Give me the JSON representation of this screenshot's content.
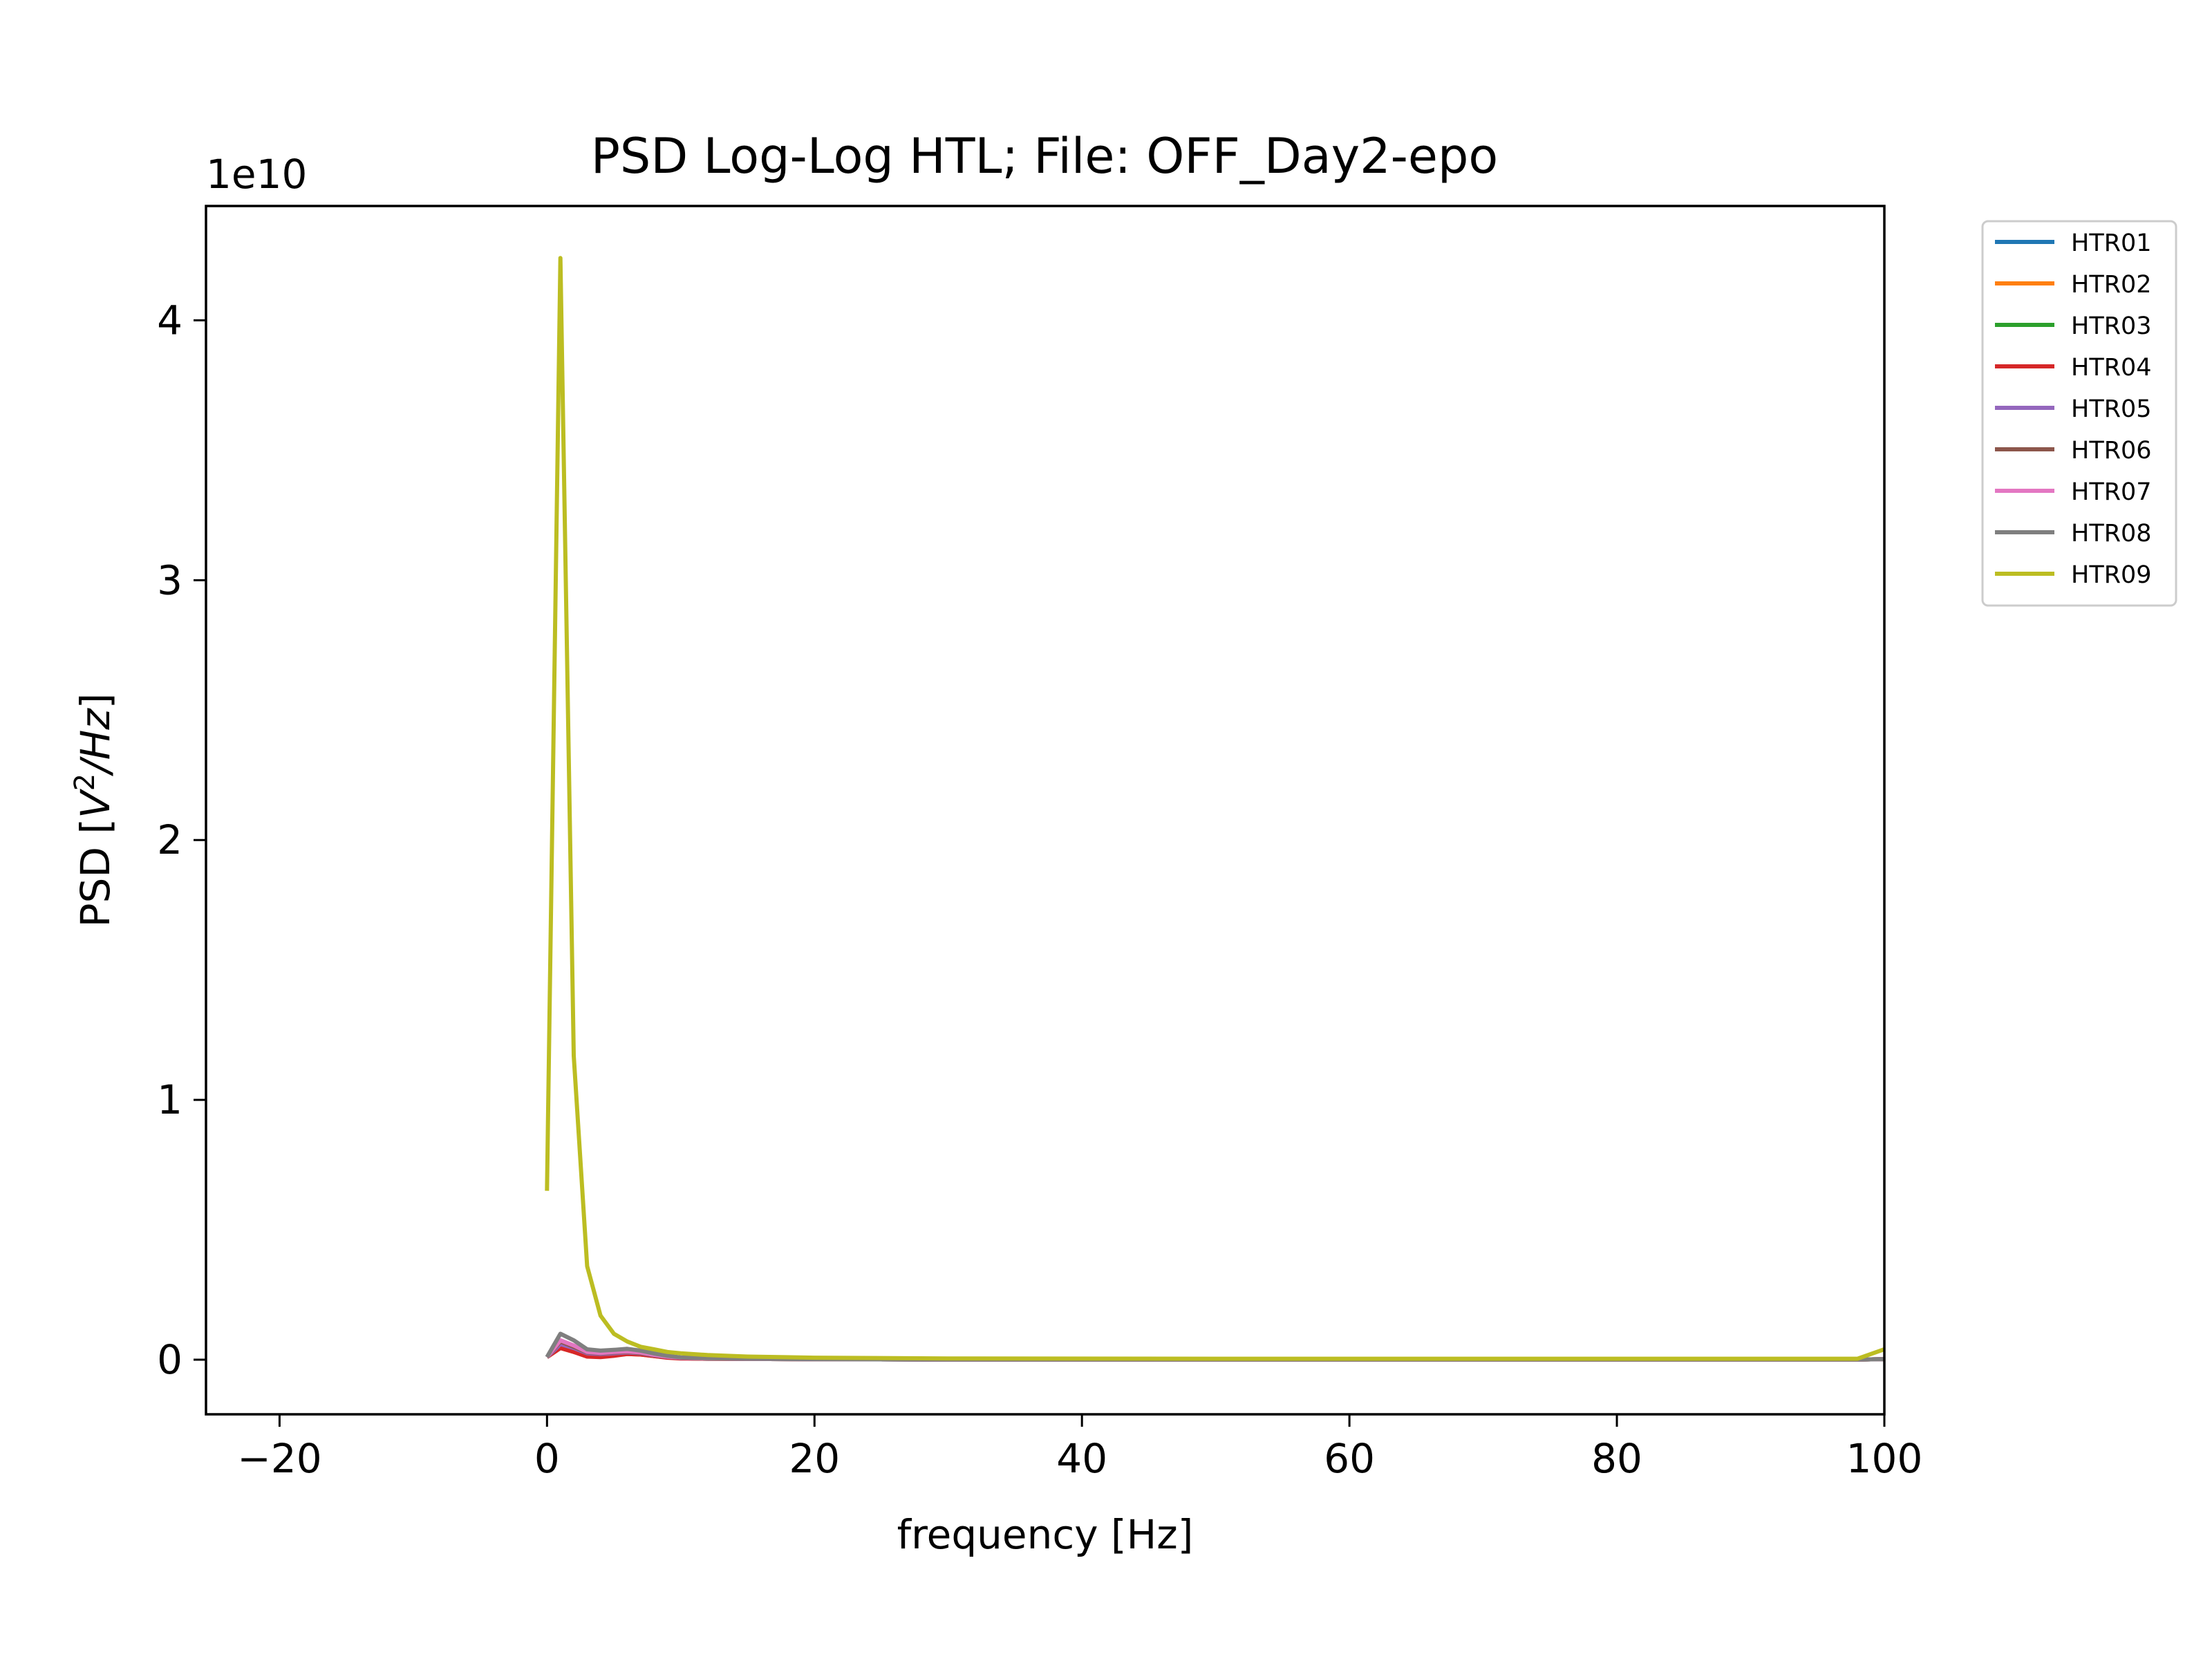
{
  "chart_data": {
    "type": "line",
    "title": "PSD Log-Log HTL; File: OFF_Day2-epo",
    "xlabel": "frequency [Hz]",
    "ylabel_prefix": "PSD [",
    "ylabel_V": "V",
    "ylabel_sup": "2",
    "ylabel_slash": "/",
    "ylabel_Hz": "Hz",
    "ylabel_suffix": "]",
    "y_offset_label": "1e10",
    "y_scale": 10000000000,
    "xlim": [
      -25.5,
      100
    ],
    "ylim": [
      -0.21,
      4.44
    ],
    "x_ticks": [
      -20,
      0,
      20,
      40,
      60,
      80,
      100
    ],
    "x_tick_labels": [
      "−20",
      "0",
      "20",
      "40",
      "60",
      "80",
      "100"
    ],
    "y_ticks": [
      0,
      1,
      2,
      3,
      4
    ],
    "y_tick_labels": [
      "0",
      "1",
      "2",
      "3",
      "4"
    ],
    "grid": false,
    "legend_position": "outside-top-right",
    "series": [
      {
        "name": "HTR01",
        "color": "#1f77b4",
        "x": [
          0,
          1,
          2,
          3,
          4,
          5,
          6,
          7,
          8,
          9,
          10,
          12,
          15,
          20,
          30,
          50,
          80,
          98,
          100
        ],
        "y": [
          0.01,
          0.05,
          0.035,
          0.02,
          0.018,
          0.02,
          0.025,
          0.022,
          0.015,
          0.01,
          0.006,
          0.004,
          0.003,
          0.002,
          0.001,
          0.001,
          0.001,
          0.001,
          0.002
        ]
      },
      {
        "name": "HTR02",
        "color": "#ff7f0e",
        "x": [
          0,
          1,
          2,
          3,
          4,
          5,
          6,
          7,
          8,
          9,
          10,
          12,
          15,
          20,
          30,
          50,
          80,
          98,
          100
        ],
        "y": [
          0.01,
          0.045,
          0.03,
          0.018,
          0.016,
          0.018,
          0.022,
          0.02,
          0.014,
          0.009,
          0.006,
          0.004,
          0.003,
          0.002,
          0.001,
          0.001,
          0.001,
          0.001,
          0.002
        ]
      },
      {
        "name": "HTR03",
        "color": "#2ca02c",
        "x": [
          0,
          1,
          2,
          3,
          4,
          5,
          6,
          7,
          8,
          9,
          10,
          12,
          15,
          20,
          30,
          50,
          80,
          98,
          100
        ],
        "y": [
          0.01,
          0.05,
          0.035,
          0.02,
          0.018,
          0.02,
          0.024,
          0.021,
          0.015,
          0.01,
          0.006,
          0.004,
          0.003,
          0.002,
          0.001,
          0.001,
          0.001,
          0.001,
          0.002
        ]
      },
      {
        "name": "HTR04",
        "color": "#d62728",
        "x": [
          0,
          1,
          2,
          3,
          4,
          5,
          6,
          7,
          8,
          9,
          10,
          12,
          15,
          20,
          30,
          50,
          80,
          98,
          100
        ],
        "y": [
          0.01,
          0.045,
          0.03,
          0.012,
          0.01,
          0.015,
          0.022,
          0.02,
          0.014,
          0.008,
          0.005,
          0.004,
          0.003,
          0.002,
          0.001,
          0.001,
          0.001,
          0.001,
          0.002
        ]
      },
      {
        "name": "HTR05",
        "color": "#9467bd",
        "x": [
          0,
          1,
          2,
          3,
          4,
          5,
          6,
          7,
          8,
          9,
          10,
          12,
          15,
          20,
          30,
          50,
          80,
          98,
          100
        ],
        "y": [
          0.01,
          0.06,
          0.045,
          0.025,
          0.022,
          0.025,
          0.028,
          0.025,
          0.017,
          0.011,
          0.007,
          0.005,
          0.003,
          0.002,
          0.001,
          0.001,
          0.001,
          0.001,
          0.002
        ]
      },
      {
        "name": "HTR06",
        "color": "#8c564b",
        "x": [
          0,
          1,
          2,
          3,
          4,
          5,
          6,
          7,
          8,
          9,
          10,
          12,
          15,
          20,
          30,
          50,
          80,
          98,
          100
        ],
        "y": [
          0.01,
          0.07,
          0.05,
          0.028,
          0.025,
          0.028,
          0.03,
          0.026,
          0.018,
          0.012,
          0.008,
          0.005,
          0.003,
          0.002,
          0.001,
          0.001,
          0.001,
          0.001,
          0.002
        ]
      },
      {
        "name": "HTR07",
        "color": "#e377c2",
        "x": [
          0,
          1,
          2,
          3,
          4,
          5,
          6,
          7,
          8,
          9,
          10,
          12,
          15,
          20,
          30,
          50,
          80,
          98,
          100
        ],
        "y": [
          0.01,
          0.075,
          0.055,
          0.03,
          0.026,
          0.03,
          0.032,
          0.028,
          0.019,
          0.012,
          0.008,
          0.005,
          0.003,
          0.002,
          0.001,
          0.001,
          0.001,
          0.001,
          0.002
        ]
      },
      {
        "name": "HTR08",
        "color": "#7f7f7f",
        "x": [
          0,
          1,
          2,
          3,
          4,
          5,
          6,
          7,
          8,
          9,
          10,
          12,
          15,
          20,
          30,
          50,
          80,
          98,
          100
        ],
        "y": [
          0.01,
          0.1,
          0.075,
          0.04,
          0.035,
          0.038,
          0.042,
          0.035,
          0.024,
          0.015,
          0.009,
          0.006,
          0.004,
          0.002,
          0.001,
          0.001,
          0.001,
          0.001,
          0.002
        ]
      },
      {
        "name": "HTR09",
        "color": "#bcbd22",
        "x": [
          0,
          1,
          2,
          3,
          4,
          5,
          6,
          7,
          8,
          9,
          10,
          12,
          15,
          20,
          30,
          50,
          80,
          98,
          100
        ],
        "y": [
          0.65,
          4.24,
          1.17,
          0.36,
          0.17,
          0.1,
          0.07,
          0.05,
          0.04,
          0.03,
          0.025,
          0.018,
          0.012,
          0.008,
          0.005,
          0.004,
          0.004,
          0.004,
          0.04
        ]
      }
    ]
  }
}
